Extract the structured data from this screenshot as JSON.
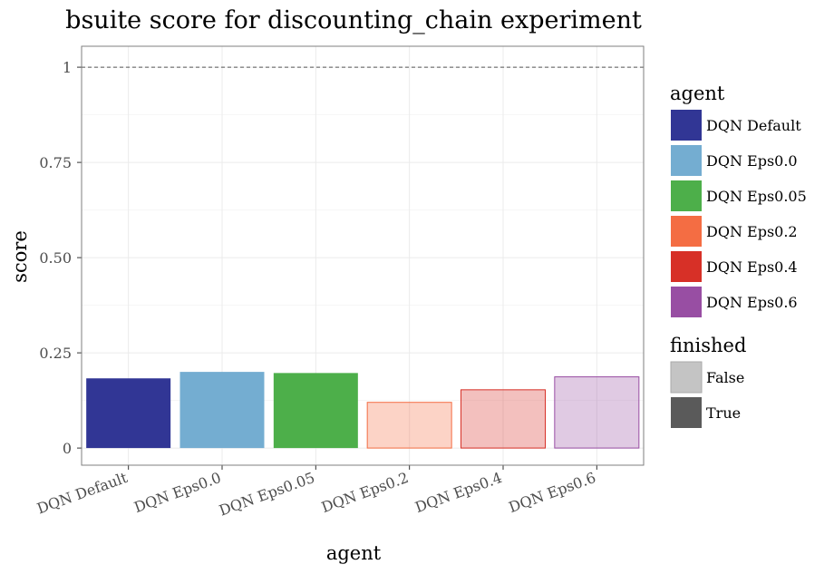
{
  "chart_data": {
    "type": "bar",
    "title": "bsuite score for discounting_chain experiment",
    "xlabel": "agent",
    "ylabel": "score",
    "ylim": [
      -0.045,
      1.055
    ],
    "yticks": [
      0,
      0.25,
      0.5,
      0.75,
      1
    ],
    "ytick_labels": [
      "0",
      "0.25",
      "0.50",
      "0.75",
      "1"
    ],
    "reference_line": 1,
    "grid": true,
    "legend_position": "right",
    "categories": [
      "DQN Default",
      "DQN Eps0.0",
      "DQN Eps0.05",
      "DQN Eps0.2",
      "DQN Eps0.4",
      "DQN Eps0.6"
    ],
    "values": [
      0.183,
      0.2,
      0.197,
      0.12,
      0.153,
      0.187
    ],
    "finished": [
      true,
      true,
      true,
      false,
      false,
      false
    ],
    "colors": [
      "#313695",
      "#74add1",
      "#4daf4a",
      "#f46d43",
      "#d73027",
      "#984ea3"
    ],
    "legend_agent": {
      "title": "agent",
      "entries": [
        "DQN Default",
        "DQN Eps0.0",
        "DQN Eps0.05",
        "DQN Eps0.2",
        "DQN Eps0.4",
        "DQN Eps0.6"
      ]
    },
    "legend_finished": {
      "title": "finished",
      "entries": [
        "False",
        "True"
      ],
      "colors": [
        "#c4c4c4",
        "#5a5a5a"
      ]
    }
  }
}
